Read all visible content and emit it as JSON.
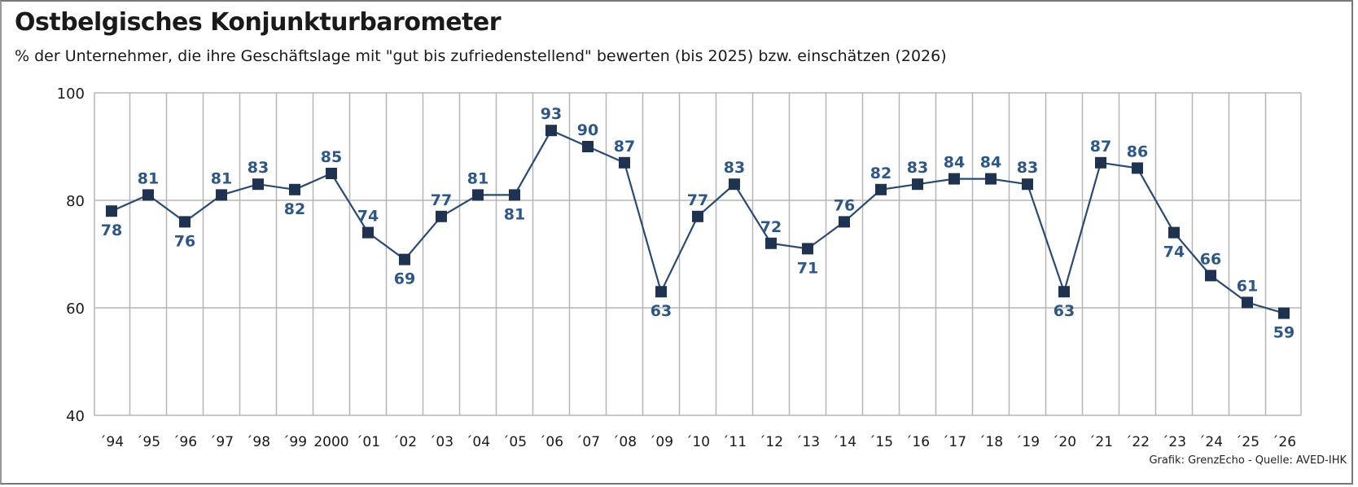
{
  "chart_data": {
    "type": "line",
    "title": "Ostbelgisches Konjunkturbarometer",
    "subtitle": "% der Unternehmer, die ihre Geschäftslage mit \"gut bis zufriedenstellend\" bewerten (bis 2025) bzw. einschätzen (2026)",
    "categories": [
      "´94",
      "´95",
      "´96",
      "´97",
      "´98",
      "´99",
      "2000",
      "´01",
      "´02",
      "´03",
      "´04",
      "´05",
      "´06",
      "´07",
      "´08",
      "´09",
      "´10",
      "´11",
      "´12",
      "´13",
      "´14",
      "´15",
      "´16",
      "´17",
      "´18",
      "´19",
      "´20",
      "´21",
      "´22",
      "´23",
      "´24",
      "´25",
      "´26"
    ],
    "values": [
      78,
      81,
      76,
      81,
      83,
      82,
      85,
      74,
      69,
      77,
      81,
      81,
      93,
      90,
      87,
      63,
      77,
      83,
      72,
      71,
      76,
      82,
      83,
      84,
      84,
      83,
      63,
      87,
      86,
      74,
      66,
      61,
      59
    ],
    "ylim": [
      40,
      100
    ],
    "yticks": [
      40,
      60,
      80,
      100
    ],
    "grid": true,
    "xlabel": "",
    "ylabel": "",
    "line_color": "#2b4a72",
    "marker_color": "#1f3350",
    "label_color": "#2e5784"
  },
  "source": "Grafik: GrenzEcho - Quelle: AVED-IHK"
}
